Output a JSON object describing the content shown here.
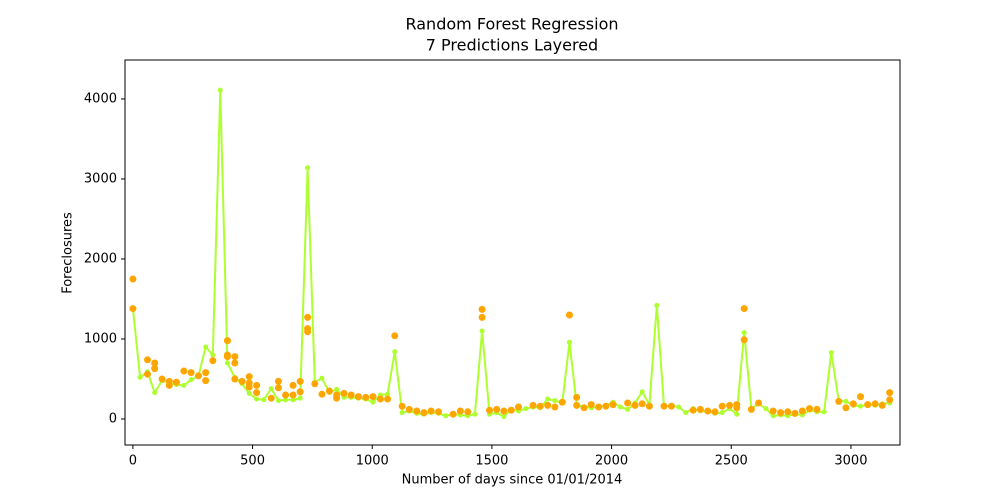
{
  "chart_data": {
    "type": "line",
    "title": "Random Forest Regression",
    "subtitle": "7 Predictions Layered",
    "x_label": "Number of days since 01/01/2014",
    "y_label": "Foreclosures",
    "xlim": [
      -33,
      3205
    ],
    "ylim": [
      -325,
      4487
    ],
    "xticks": [
      0,
      500,
      1000,
      1500,
      2000,
      2500,
      3000
    ],
    "yticks": [
      0,
      1000,
      2000,
      3000,
      4000
    ],
    "series": [
      {
        "type": "line",
        "color": "#adff2f",
        "x": [
          0,
          30,
          61,
          91,
          122,
          152,
          182,
          213,
          243,
          274,
          304,
          334,
          365,
          395,
          426,
          456,
          486,
          517,
          547,
          578,
          608,
          638,
          669,
          699,
          730,
          760,
          790,
          821,
          851,
          882,
          912,
          942,
          973,
          1003,
          1034,
          1064,
          1094,
          1125,
          1155,
          1186,
          1216,
          1246,
          1277,
          1307,
          1338,
          1368,
          1399,
          1429,
          1459,
          1490,
          1520,
          1550,
          1581,
          1611,
          1642,
          1672,
          1702,
          1733,
          1763,
          1794,
          1824,
          1854,
          1885,
          1915,
          1946,
          1976,
          2006,
          2037,
          2067,
          2098,
          2128,
          2158,
          2189,
          2219,
          2250,
          2280,
          2310,
          2341,
          2371,
          2402,
          2432,
          2462,
          2493,
          2523,
          2554,
          2584,
          2614,
          2645,
          2675,
          2706,
          2736,
          2766,
          2797,
          2827,
          2858,
          2888,
          2918,
          2949,
          2979,
          3010,
          3040,
          3070,
          3101,
          3131,
          3162
        ],
        "values": [
          1380,
          520,
          590,
          330,
          480,
          450,
          430,
          420,
          490,
          540,
          900,
          800,
          4110,
          700,
          520,
          440,
          320,
          250,
          240,
          380,
          230,
          240,
          240,
          260,
          3140,
          460,
          510,
          330,
          370,
          270,
          270,
          260,
          250,
          210,
          300,
          310,
          840,
          80,
          100,
          70,
          60,
          80,
          70,
          40,
          60,
          50,
          40,
          60,
          1100,
          60,
          80,
          30,
          120,
          100,
          130,
          150,
          140,
          250,
          230,
          200,
          960,
          180,
          150,
          140,
          150,
          170,
          210,
          150,
          120,
          200,
          340,
          180,
          1420,
          160,
          170,
          150,
          80,
          130,
          100,
          90,
          70,
          80,
          130,
          60,
          1080,
          130,
          190,
          130,
          40,
          50,
          40,
          60,
          50,
          110,
          90,
          90,
          830,
          230,
          220,
          170,
          160,
          180,
          170,
          190,
          200
        ]
      },
      {
        "type": "scatter",
        "color": "#ffa500",
        "x": [
          0,
          0,
          61,
          61,
          91,
          91,
          122,
          152,
          152,
          182,
          213,
          243,
          274,
          304,
          304,
          334,
          395,
          395,
          395,
          426,
          426,
          426,
          456,
          486,
          486,
          486,
          517,
          517,
          578,
          608,
          608,
          638,
          669,
          669,
          699,
          699,
          730,
          730,
          730,
          760,
          790,
          821,
          851,
          851,
          882,
          912,
          942,
          973,
          1003,
          1034,
          1064,
          1094,
          1125,
          1155,
          1186,
          1216,
          1246,
          1277,
          1338,
          1368,
          1399,
          1459,
          1459,
          1490,
          1520,
          1550,
          1581,
          1611,
          1672,
          1702,
          1733,
          1763,
          1794,
          1824,
          1854,
          1854,
          1885,
          1915,
          1946,
          1976,
          2006,
          2067,
          2098,
          2128,
          2158,
          2219,
          2250,
          2341,
          2371,
          2402,
          2432,
          2462,
          2493,
          2523,
          2523,
          2554,
          2554,
          2584,
          2614,
          2675,
          2706,
          2736,
          2766,
          2797,
          2827,
          2858,
          2949,
          2979,
          3010,
          3040,
          3070,
          3101,
          3131,
          3162,
          3162
        ],
        "values": [
          1750,
          1380,
          740,
          560,
          700,
          630,
          500,
          470,
          420,
          460,
          600,
          580,
          540,
          480,
          580,
          730,
          980,
          800,
          780,
          780,
          700,
          500,
          470,
          530,
          450,
          400,
          420,
          330,
          260,
          470,
          390,
          300,
          420,
          300,
          470,
          340,
          1270,
          1130,
          1090,
          440,
          310,
          350,
          300,
          260,
          320,
          300,
          280,
          270,
          280,
          250,
          250,
          1040,
          160,
          120,
          100,
          80,
          100,
          90,
          60,
          100,
          90,
          1370,
          1270,
          110,
          120,
          100,
          110,
          150,
          170,
          160,
          170,
          150,
          210,
          1300,
          270,
          170,
          140,
          180,
          150,
          160,
          180,
          200,
          170,
          190,
          160,
          160,
          160,
          110,
          120,
          100,
          90,
          160,
          170,
          180,
          140,
          1380,
          990,
          120,
          200,
          100,
          80,
          90,
          70,
          100,
          130,
          120,
          220,
          140,
          190,
          280,
          180,
          190,
          170,
          330,
          240
        ]
      }
    ]
  }
}
